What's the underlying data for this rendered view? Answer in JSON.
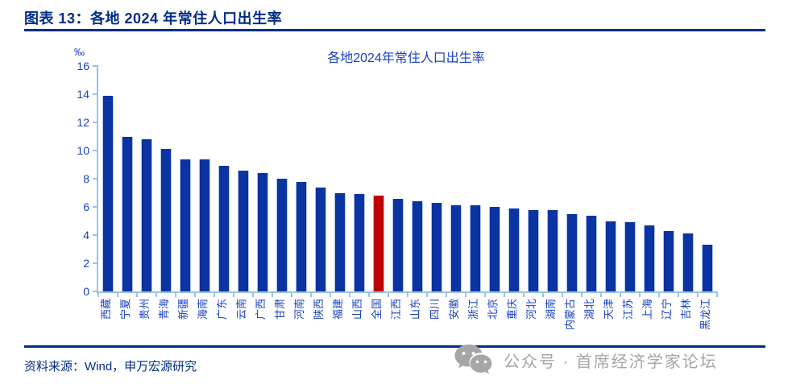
{
  "page": {
    "figure_label": "图表 13：各地 2024 年常住人口出生率",
    "source_note": "资料来源：Wind，申万宏源研究",
    "watermark_text": "公众号 · 首席经济学家论坛"
  },
  "chart_data": {
    "type": "bar",
    "title": "各地2024年常住人口出生率",
    "unit": "‰",
    "categories": [
      "西藏",
      "宁夏",
      "贵州",
      "青海",
      "新疆",
      "海南",
      "广东",
      "云南",
      "广西",
      "甘肃",
      "河南",
      "陕西",
      "福建",
      "山西",
      "全国",
      "江西",
      "山东",
      "四川",
      "安徽",
      "浙江",
      "北京",
      "重庆",
      "河北",
      "湖南",
      "内蒙古",
      "湖北",
      "天津",
      "江苏",
      "上海",
      "辽宁",
      "吉林",
      "黑龙江"
    ],
    "values": [
      13.9,
      11.0,
      10.8,
      10.1,
      9.4,
      9.4,
      8.9,
      8.6,
      8.4,
      8.0,
      7.8,
      7.4,
      7.0,
      6.9,
      6.8,
      6.6,
      6.4,
      6.3,
      6.1,
      6.1,
      6.0,
      5.9,
      5.8,
      5.8,
      5.5,
      5.4,
      5.0,
      4.9,
      4.7,
      4.3,
      4.1,
      3.3
    ],
    "highlight_category": "全国",
    "highlight_index": 14,
    "ylim": [
      0,
      16
    ],
    "yticks": [
      0,
      2,
      4,
      6,
      8,
      10,
      12,
      14,
      16
    ],
    "grid": false,
    "legend": "none",
    "colors": {
      "bar": "#0b33a2",
      "bar_edge": "#aec6e8",
      "highlight": "#c00000",
      "highlight_edge": "#e4b2b2",
      "axis": "#9cc2e5",
      "label": "#1a41c2",
      "header": "#002c87",
      "watermark": "#a6a6a6"
    }
  }
}
